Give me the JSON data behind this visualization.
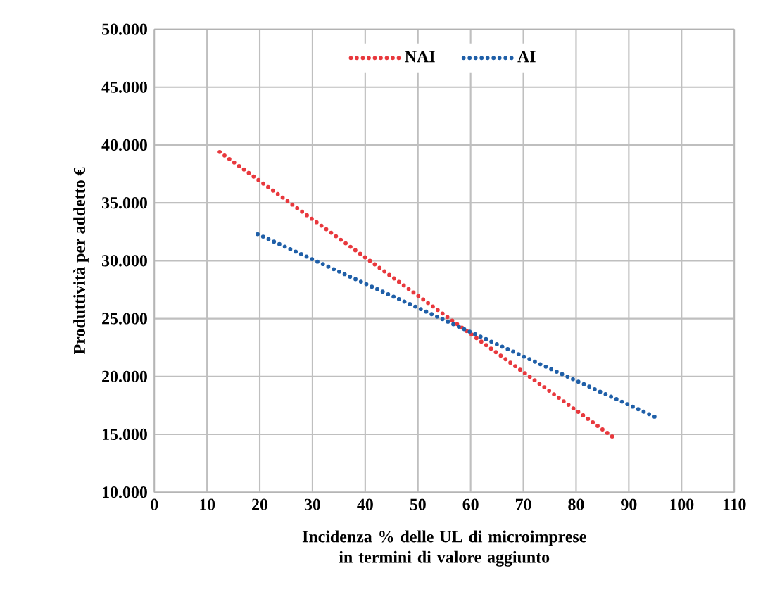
{
  "chart_data": {
    "type": "line",
    "xlabel": "Incidenza % delle UL di microimprese in termini di valore aggiunto",
    "ylabel": "Produttività per addetto €",
    "series": [
      {
        "name": "NAI",
        "color": "#e8383d",
        "x": [
          12.4,
          87.5
        ],
        "values": [
          39400,
          14600
        ]
      },
      {
        "name": "AI",
        "color": "#1f5fa8",
        "x": [
          19.6,
          95
        ],
        "values": [
          32300,
          16500
        ]
      }
    ],
    "xlim": [
      0,
      110
    ],
    "xticks": [
      0,
      10,
      20,
      30,
      40,
      50,
      60,
      70,
      80,
      90,
      100,
      110
    ],
    "ylim": [
      10000,
      50000
    ],
    "yticks": [
      {
        "value": 10000,
        "label": "10.000"
      },
      {
        "value": 15000,
        "label": "15.000"
      },
      {
        "value": 20000,
        "label": "20.000"
      },
      {
        "value": 25000,
        "label": "25.000"
      },
      {
        "value": 30000,
        "label": "30.000"
      },
      {
        "value": 35000,
        "label": "35.000"
      },
      {
        "value": 40000,
        "label": "40.000"
      },
      {
        "value": 45000,
        "label": "45.000"
      },
      {
        "value": 50000,
        "label": "50.000"
      }
    ],
    "grid": true,
    "legend": "top",
    "line_style": "dotted",
    "marker": "none"
  }
}
